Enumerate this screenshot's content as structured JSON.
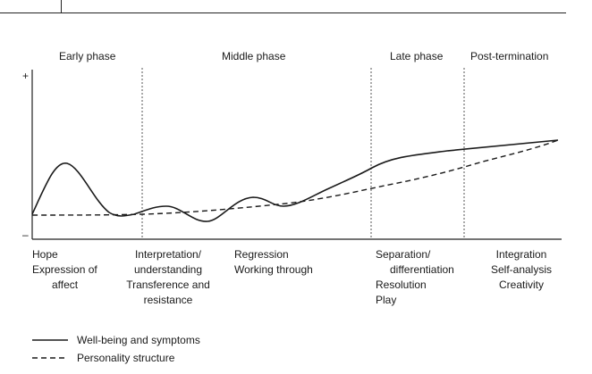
{
  "phases": {
    "early": "Early phase",
    "middle": "Middle phase",
    "late": "Late phase",
    "post": "Post-termination"
  },
  "axis": {
    "plus": "+",
    "minus": "–"
  },
  "stages": {
    "early": [
      "Hope",
      "Expression of",
      "affect"
    ],
    "interpretation": [
      "Interpretation/",
      "understanding",
      "Transference and",
      "resistance"
    ],
    "regression": [
      "Regression",
      "Working through"
    ],
    "separation": [
      "Separation/",
      "differentiation",
      "Resolution",
      "Play"
    ],
    "integration": [
      "Integration",
      "Self-analysis",
      "Creativity"
    ]
  },
  "legend": {
    "solid": "Well-being and symptoms",
    "dashed": "Personality structure"
  }
}
